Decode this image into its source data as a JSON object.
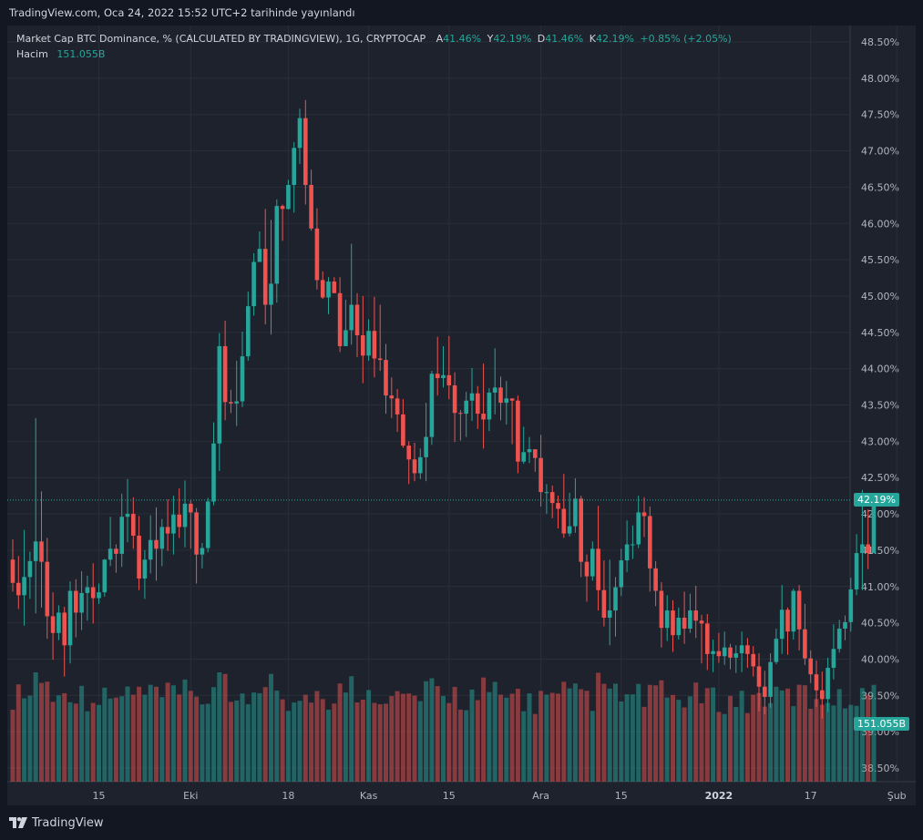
{
  "header": {
    "publish_text": "TradingView.com, Oca 24, 2022 15:52 UTC+2 tarihinde yayınlandı"
  },
  "legend": {
    "symbol": "Market Cap BTC Dominance, % (CALCULATED BY TRADINGVIEW), 1G, CRYPTOCAP",
    "ohlc": [
      {
        "label": "A",
        "value": "41.46%"
      },
      {
        "label": "Y",
        "value": "42.19%"
      },
      {
        "label": "D",
        "value": "41.46%"
      },
      {
        "label": "K",
        "value": "42.19%"
      }
    ],
    "change": "+0.85% (+2.05%)",
    "volume_label": "Hacim",
    "volume_value": "151.055B"
  },
  "price_tags": {
    "last_price": "42.19%",
    "last_volume": "151.055B"
  },
  "footer": {
    "brand": "TradingView"
  },
  "colors": {
    "up": "#26a69a",
    "down": "#ef5350",
    "background": "#1e222d",
    "grid": "#2a2e39",
    "text": "#b2b5be"
  },
  "chart_data": {
    "type": "candlestick",
    "title": "Market Cap BTC Dominance, % (CALCULATED BY TRADINGVIEW), 1G, CRYPTOCAP",
    "ylim": [
      38.5,
      48.5
    ],
    "y_ticks": [
      "38.50%",
      "39.00%",
      "39.50%",
      "40.00%",
      "40.50%",
      "41.00%",
      "41.50%",
      "42.00%",
      "42.50%",
      "43.00%",
      "43.50%",
      "44.00%",
      "44.50%",
      "45.00%",
      "45.50%",
      "46.00%",
      "46.50%",
      "47.00%",
      "47.50%",
      "48.00%",
      "48.50%"
    ],
    "x_ticks": [
      {
        "label": "15",
        "index": 15,
        "bold": false
      },
      {
        "label": "Eki",
        "index": 31,
        "bold": false
      },
      {
        "label": "18",
        "index": 48,
        "bold": false
      },
      {
        "label": "Kas",
        "index": 62,
        "bold": false
      },
      {
        "label": "15",
        "index": 76,
        "bold": false
      },
      {
        "label": "Ara",
        "index": 92,
        "bold": false
      },
      {
        "label": "15",
        "index": 106,
        "bold": false
      },
      {
        "label": "2022",
        "index": 123,
        "bold": true
      },
      {
        "label": "17",
        "index": 139,
        "bold": false
      },
      {
        "label": "Şub",
        "index": 154,
        "bold": false
      }
    ],
    "x_slots": 156,
    "last_close": 42.19,
    "candles": [
      [
        41.37,
        41.05,
        41.65,
        40.93
      ],
      [
        41.05,
        40.88,
        41.42,
        40.69
      ],
      [
        40.88,
        41.13,
        41.78,
        40.46
      ],
      [
        41.13,
        41.35,
        41.48,
        40.83
      ],
      [
        41.35,
        41.62,
        43.32,
        40.63
      ],
      [
        41.62,
        41.34,
        42.31,
        40.71
      ],
      [
        41.34,
        40.59,
        41.67,
        40.28
      ],
      [
        40.59,
        40.36,
        40.92,
        39.99
      ],
      [
        40.36,
        40.64,
        40.74,
        40.26
      ],
      [
        40.64,
        40.19,
        40.72,
        39.76
      ],
      [
        40.19,
        40.94,
        41.07,
        39.94
      ],
      [
        40.94,
        40.64,
        41.1,
        40.3
      ],
      [
        40.64,
        40.91,
        41.21,
        40.4
      ],
      [
        40.91,
        40.99,
        41.15,
        40.53
      ],
      [
        40.99,
        40.84,
        41.32,
        40.49
      ],
      [
        40.84,
        40.92,
        41.04,
        40.76
      ],
      [
        40.92,
        41.37,
        41.38,
        40.86
      ],
      [
        41.37,
        41.52,
        41.96,
        41.28
      ],
      [
        41.52,
        41.45,
        41.58,
        41.19
      ],
      [
        41.45,
        41.96,
        42.28,
        41.27
      ],
      [
        41.96,
        42.0,
        42.48,
        41.61
      ],
      [
        42.0,
        41.7,
        42.23,
        41.52
      ],
      [
        41.7,
        41.11,
        41.97,
        40.95
      ],
      [
        41.11,
        41.37,
        41.5,
        40.83
      ],
      [
        41.37,
        41.64,
        41.98,
        41.18
      ],
      [
        41.64,
        41.52,
        42.09,
        41.08
      ],
      [
        41.52,
        41.82,
        41.93,
        41.28
      ],
      [
        41.82,
        41.73,
        42.2,
        41.49
      ],
      [
        41.73,
        41.99,
        42.25,
        41.44
      ],
      [
        41.99,
        41.82,
        42.35,
        41.67
      ],
      [
        41.82,
        42.14,
        42.46,
        41.54
      ],
      [
        42.14,
        42.02,
        42.19,
        41.52
      ],
      [
        42.02,
        41.44,
        42.08,
        41.04
      ],
      [
        41.44,
        41.53,
        41.6,
        41.25
      ],
      [
        41.53,
        42.17,
        42.22,
        41.47
      ],
      [
        42.17,
        42.97,
        43.26,
        42.12
      ],
      [
        42.97,
        44.31,
        44.49,
        42.59
      ],
      [
        44.31,
        43.54,
        44.66,
        43.29
      ],
      [
        43.54,
        43.52,
        43.71,
        43.39
      ],
      [
        43.52,
        43.55,
        44.11,
        43.21
      ],
      [
        43.55,
        44.17,
        44.51,
        43.47
      ],
      [
        44.17,
        44.86,
        45.06,
        44.11
      ],
      [
        44.86,
        45.47,
        45.59,
        44.73
      ],
      [
        45.47,
        45.65,
        45.89,
        45.47
      ],
      [
        45.65,
        44.88,
        46.2,
        44.61
      ],
      [
        44.88,
        45.17,
        46.05,
        44.47
      ],
      [
        45.17,
        46.24,
        46.33,
        44.91
      ],
      [
        46.24,
        46.2,
        46.26,
        45.76
      ],
      [
        46.2,
        46.53,
        46.6,
        46.19
      ],
      [
        46.53,
        47.04,
        47.12,
        46.15
      ],
      [
        47.04,
        47.45,
        47.58,
        46.82
      ],
      [
        47.45,
        46.53,
        47.7,
        46.26
      ],
      [
        46.53,
        45.93,
        46.74,
        45.9
      ],
      [
        45.93,
        45.22,
        46.21,
        45.09
      ],
      [
        45.22,
        44.98,
        45.34,
        44.96
      ],
      [
        44.98,
        45.2,
        45.26,
        44.75
      ],
      [
        45.2,
        45.04,
        45.26,
        45.04
      ],
      [
        45.04,
        44.31,
        45.26,
        44.23
      ],
      [
        44.31,
        44.53,
        44.95,
        44.33
      ],
      [
        44.53,
        44.88,
        45.72,
        44.33
      ],
      [
        44.88,
        44.46,
        45.04,
        44.16
      ],
      [
        44.46,
        44.18,
        45.0,
        43.8
      ],
      [
        44.18,
        44.52,
        44.68,
        44.11
      ],
      [
        44.52,
        44.14,
        44.99,
        43.88
      ],
      [
        44.14,
        44.12,
        44.88,
        43.97
      ],
      [
        44.12,
        43.63,
        44.34,
        43.38
      ],
      [
        43.63,
        43.59,
        43.88,
        43.32
      ],
      [
        43.59,
        43.37,
        43.72,
        43.13
      ],
      [
        43.37,
        42.94,
        43.58,
        42.91
      ],
      [
        42.94,
        42.75,
        43.0,
        42.41
      ],
      [
        42.75,
        42.56,
        42.98,
        42.45
      ],
      [
        42.56,
        42.78,
        42.9,
        42.48
      ],
      [
        42.78,
        43.06,
        43.53,
        42.45
      ],
      [
        43.06,
        43.93,
        43.97,
        42.95
      ],
      [
        43.93,
        43.87,
        44.44,
        43.63
      ],
      [
        43.87,
        43.91,
        44.31,
        43.74
      ],
      [
        43.91,
        43.77,
        44.45,
        43.58
      ],
      [
        43.77,
        43.39,
        43.95,
        42.99
      ],
      [
        43.39,
        43.38,
        43.43,
        43.01
      ],
      [
        43.38,
        43.56,
        43.68,
        43.06
      ],
      [
        43.56,
        43.66,
        44.01,
        43.28
      ],
      [
        43.66,
        43.38,
        43.76,
        43.17
      ],
      [
        43.38,
        43.3,
        44.07,
        42.9
      ],
      [
        43.3,
        43.67,
        43.73,
        43.14
      ],
      [
        43.67,
        43.74,
        44.28,
        43.37
      ],
      [
        43.74,
        43.53,
        43.89,
        43.29
      ],
      [
        43.53,
        43.59,
        43.83,
        43.23
      ],
      [
        43.59,
        43.56,
        43.59,
        42.96
      ],
      [
        43.56,
        42.72,
        43.63,
        42.56
      ],
      [
        42.72,
        42.85,
        43.2,
        42.69
      ],
      [
        42.85,
        42.89,
        43.06,
        42.7
      ],
      [
        42.89,
        42.77,
        42.81,
        42.58
      ],
      [
        42.77,
        42.3,
        43.09,
        42.1
      ],
      [
        42.3,
        42.3,
        42.41,
        42.0
      ],
      [
        42.3,
        42.15,
        42.39,
        41.94
      ]
    ],
    "ohlc_note": "",
    "volumes": []
  }
}
